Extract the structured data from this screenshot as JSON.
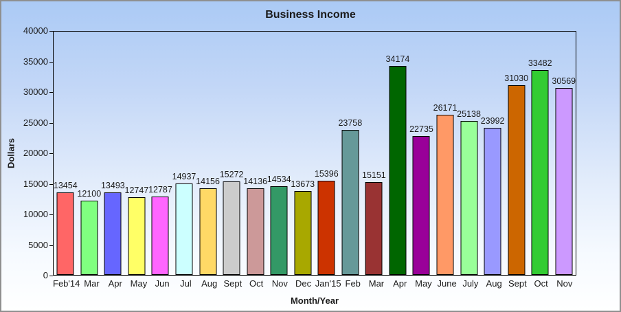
{
  "window": {
    "border_color": "#8f8f8f",
    "background_gradient_top": "#abcaf5",
    "background_gradient_bottom": "#ffffff"
  },
  "chart_data": {
    "type": "bar",
    "title": "Business Income",
    "xlabel": "Month/Year",
    "ylabel": "Dollars",
    "ylim": [
      0,
      40000
    ],
    "ytick_step": 5000,
    "grid": false,
    "legend": null,
    "bar_border_color": "#000000",
    "categories": [
      "Feb'14",
      "Mar",
      "Apr",
      "May",
      "Jun",
      "Jul",
      "Aug",
      "Sept",
      "Oct",
      "Nov",
      "Dec",
      "Jan'15",
      "Feb",
      "Mar",
      "Apr",
      "May",
      "June",
      "July",
      "Aug",
      "Sept",
      "Oct",
      "Nov"
    ],
    "values": [
      13454,
      12100,
      13493,
      12747,
      12787,
      14937,
      14156,
      15272,
      14136,
      14534,
      13673,
      15396,
      23758,
      15151,
      34174,
      22735,
      26171,
      25138,
      23992,
      31030,
      33482,
      30569
    ],
    "colors": [
      "#ff6666",
      "#80ff80",
      "#6666ff",
      "#ffff66",
      "#ff66ff",
      "#ccffff",
      "#ffd966",
      "#cccccc",
      "#cc9999",
      "#339966",
      "#a8a800",
      "#cc3300",
      "#669999",
      "#993333",
      "#006600",
      "#990099",
      "#ff9966",
      "#99ff99",
      "#9999ff",
      "#cc6600",
      "#33cc33",
      "#cc99ff"
    ]
  }
}
